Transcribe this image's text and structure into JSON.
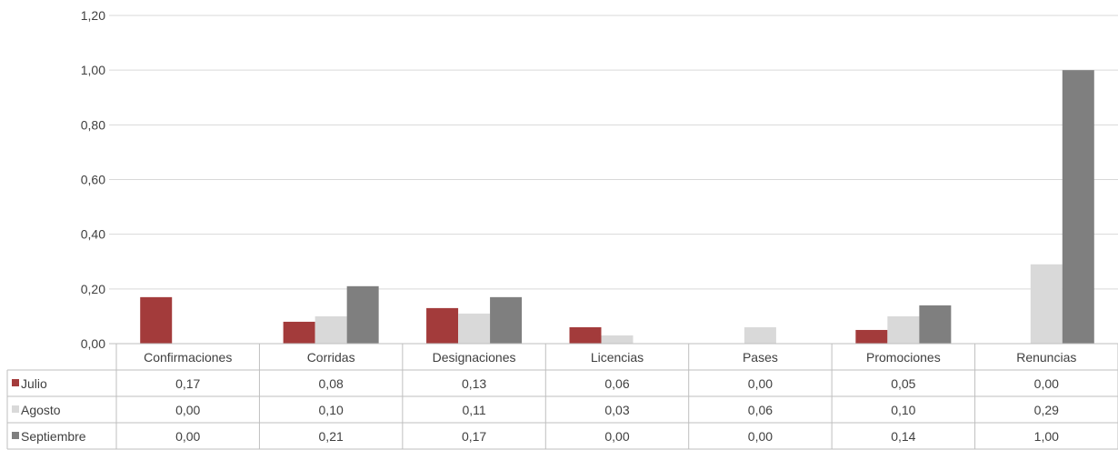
{
  "chart_data": {
    "type": "bar",
    "title": "",
    "xlabel": "",
    "ylabel": "",
    "ylim": [
      0,
      1.2
    ],
    "yticks": [
      "0,00",
      "0,20",
      "0,40",
      "0,60",
      "0,80",
      "1,00",
      "1,20"
    ],
    "ytick_values": [
      0,
      0.2,
      0.4,
      0.6,
      0.8,
      1.0,
      1.2
    ],
    "grid": true,
    "legend": "data-table-left",
    "categories": [
      "Confirmaciones",
      "Corridas",
      "Designaciones",
      "Licencias",
      "Pases",
      "Promociones",
      "Renuncias"
    ],
    "series": [
      {
        "name": "Julio",
        "color": "#a33b3b",
        "values": [
          0.17,
          0.08,
          0.13,
          0.06,
          0.0,
          0.05,
          0.0
        ],
        "labels": [
          "0,17",
          "0,08",
          "0,13",
          "0,06",
          "0,00",
          "0,05",
          "0,00"
        ]
      },
      {
        "name": "Agosto",
        "color": "#d9d9d9",
        "values": [
          0.0,
          0.1,
          0.11,
          0.03,
          0.06,
          0.1,
          0.29
        ],
        "labels": [
          "0,00",
          "0,10",
          "0,11",
          "0,03",
          "0,06",
          "0,10",
          "0,29"
        ]
      },
      {
        "name": "Septiembre",
        "color": "#7f7f7f",
        "values": [
          0.0,
          0.21,
          0.17,
          0.0,
          0.0,
          0.14,
          1.0
        ],
        "labels": [
          "0,00",
          "0,21",
          "0,17",
          "0,00",
          "0,00",
          "0,14",
          "1,00"
        ]
      }
    ]
  }
}
